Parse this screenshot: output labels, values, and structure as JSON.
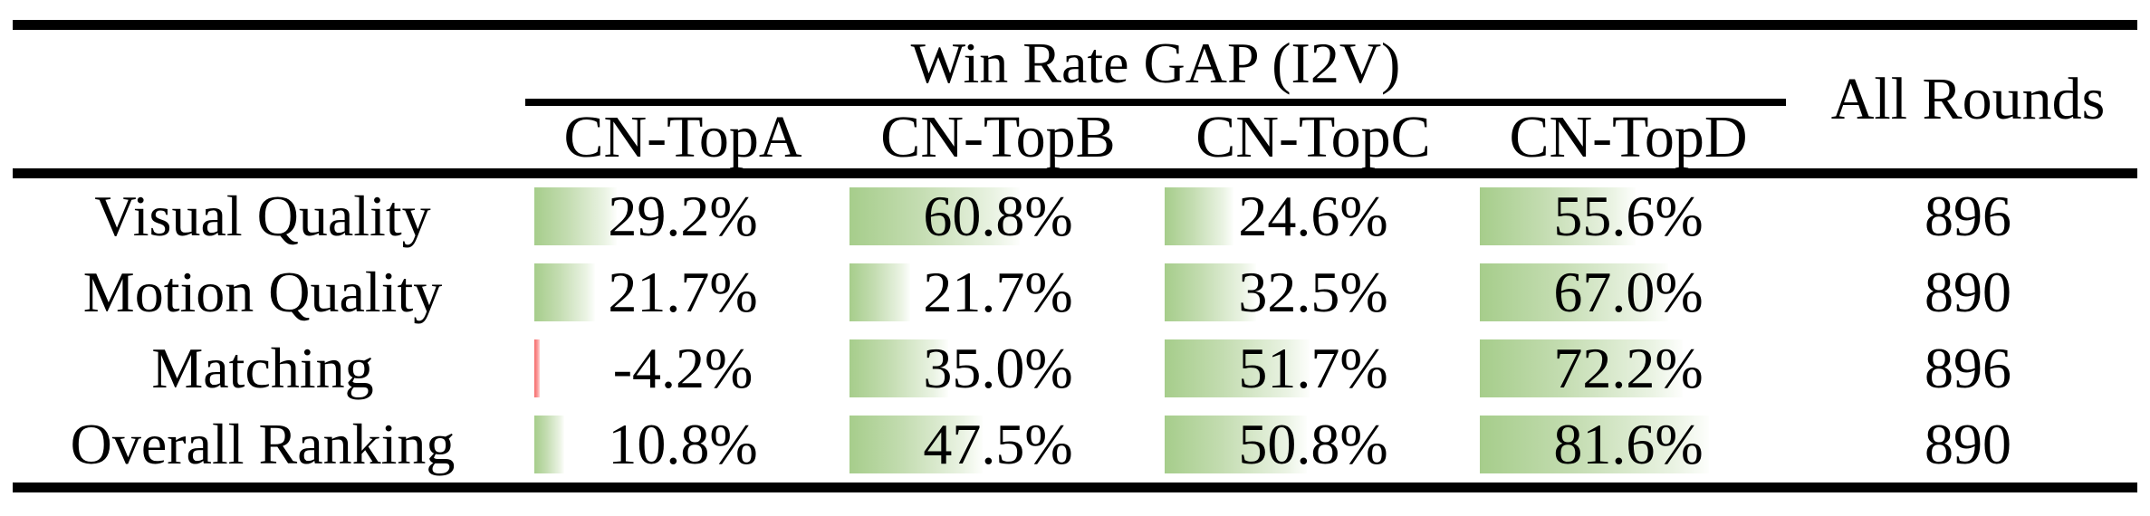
{
  "figure": {
    "group_header": "Win Rate GAP (I2V)",
    "all_rounds_header": "All Rounds",
    "columns": [
      "CN-TopA",
      "CN-TopB",
      "CN-TopC",
      "CN-TopD"
    ],
    "rows": [
      {
        "label": "Visual Quality",
        "values": [
          29.2,
          60.8,
          24.6,
          55.6
        ],
        "display": [
          "29.2%",
          "60.8%",
          "24.6%",
          "55.6%"
        ],
        "all_rounds": "896"
      },
      {
        "label": "Motion Quality",
        "values": [
          21.7,
          21.7,
          32.5,
          67.0
        ],
        "display": [
          "21.7%",
          "21.7%",
          "32.5%",
          "67.0%"
        ],
        "all_rounds": "890"
      },
      {
        "label": "Matching",
        "values": [
          -4.2,
          35.0,
          51.7,
          72.2
        ],
        "display": [
          "-4.2%",
          "35.0%",
          "51.7%",
          "72.2%"
        ],
        "all_rounds": "896"
      },
      {
        "label": "Overall Ranking",
        "values": [
          10.8,
          47.5,
          50.8,
          81.6
        ],
        "display": [
          "10.8%",
          "47.5%",
          "50.8%",
          "81.6%"
        ],
        "all_rounds": "890"
      }
    ]
  },
  "colors": {
    "text": "#000000",
    "rule": "#000000",
    "bar_positive_green": "#a6cd8b",
    "bar_negative_red": "#f56a6a",
    "background": "#ffffff"
  },
  "chart_data": {
    "type": "table",
    "title": "Win Rate GAP (I2V)",
    "categories": [
      "Visual Quality",
      "Motion Quality",
      "Matching",
      "Overall Ranking"
    ],
    "series": [
      {
        "name": "CN-TopA",
        "values": [
          29.2,
          21.7,
          -4.2,
          10.8
        ]
      },
      {
        "name": "CN-TopB",
        "values": [
          60.8,
          21.7,
          35.0,
          47.5
        ]
      },
      {
        "name": "CN-TopC",
        "values": [
          24.6,
          32.5,
          51.7,
          50.8
        ]
      },
      {
        "name": "CN-TopD",
        "values": [
          55.6,
          67.0,
          72.2,
          81.6
        ]
      }
    ],
    "all_rounds": [
      896,
      890,
      896,
      890
    ],
    "value_unit": "%",
    "bar_style": "in-cell data bars, green gradient for positive, red for negative, width proportional to value (100% = full cell)"
  }
}
